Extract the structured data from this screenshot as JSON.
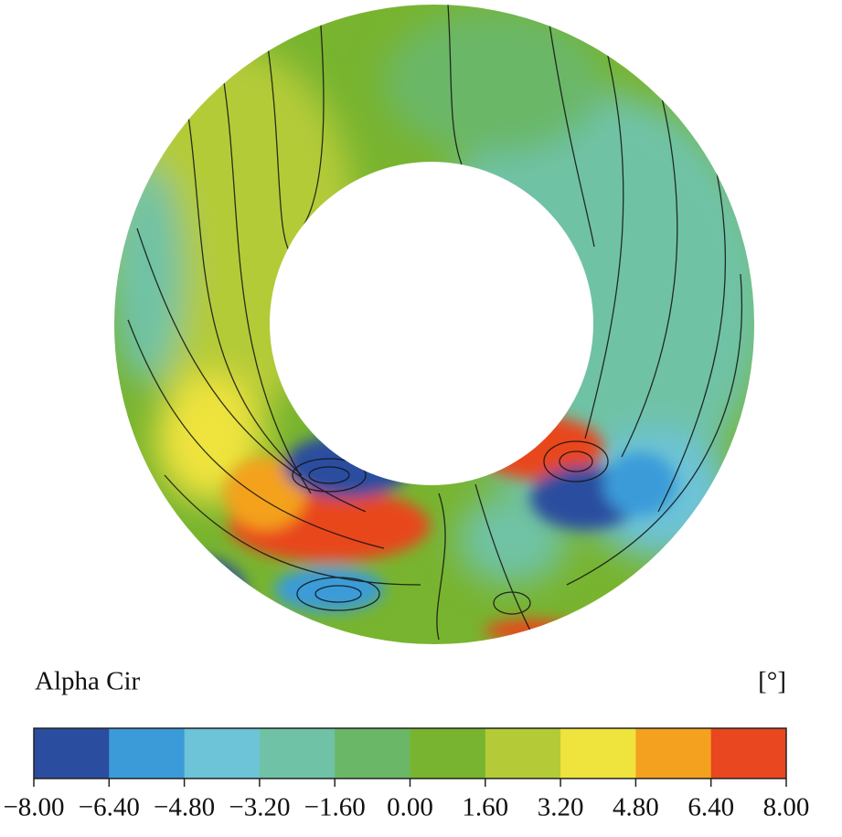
{
  "chart_data": {
    "type": "contour",
    "title": "Alpha Cir",
    "unit": "[°]",
    "colorbar": {
      "lim": [
        -8,
        8
      ],
      "colors": [
        "#2b4d9f",
        "#3b9bd9",
        "#6dc3d7",
        "#6fc2a5",
        "#6ab767",
        "#78b42f",
        "#b4cb37",
        "#efe33d",
        "#f4a11f",
        "#e8471f"
      ],
      "ticks": [
        {
          "value": -8,
          "label": "−8.00"
        },
        {
          "value": -6.4,
          "label": "−6.40"
        },
        {
          "value": -4.8,
          "label": "−4.80"
        },
        {
          "value": -3.2,
          "label": "−3.20"
        },
        {
          "value": -1.6,
          "label": "−1.60"
        },
        {
          "value": 0,
          "label": "0.00"
        },
        {
          "value": 1.6,
          "label": "1.60"
        },
        {
          "value": 3.2,
          "label": "3.20"
        },
        {
          "value": 4.8,
          "label": "4.80"
        },
        {
          "value": 6.4,
          "label": "6.40"
        },
        {
          "value": 8,
          "label": "8.00"
        }
      ]
    }
  }
}
